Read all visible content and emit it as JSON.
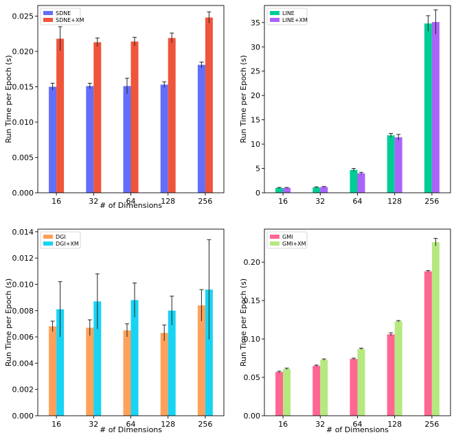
{
  "chart_data": [
    {
      "type": "bar",
      "xlabel": "# of Dimensions",
      "ylabel": "Run Time per Epoch (s)",
      "categories": [
        "16",
        "32",
        "64",
        "128",
        "256"
      ],
      "ylim": [
        0,
        0.0265
      ],
      "yticks": [
        "0.000",
        "0.005",
        "0.010",
        "0.015",
        "0.020",
        "0.025"
      ],
      "ytick_values": [
        0,
        0.005,
        0.01,
        0.015,
        0.02,
        0.025
      ],
      "legend_position": "top-left",
      "series": [
        {
          "name": "SDNE",
          "color": "#636efa",
          "values": [
            0.015,
            0.0151,
            0.0151,
            0.0153,
            0.0181
          ],
          "errors": [
            0.0005,
            0.0004,
            0.0011,
            0.0004,
            0.0004
          ]
        },
        {
          "name": "SDNE+XM",
          "color": "#ef553b",
          "values": [
            0.0218,
            0.0213,
            0.0214,
            0.0219,
            0.0248
          ],
          "errors": [
            0.0017,
            0.0006,
            0.0006,
            0.0007,
            0.0008
          ]
        }
      ]
    },
    {
      "type": "bar",
      "xlabel": "",
      "ylabel": "Run Time per Epoch (s)",
      "categories": [
        "16",
        "32",
        "64",
        "128",
        "256"
      ],
      "ylim": [
        0,
        38.5
      ],
      "yticks": [
        "0",
        "5",
        "10",
        "15",
        "20",
        "25",
        "30",
        "35"
      ],
      "ytick_values": [
        0,
        5,
        10,
        15,
        20,
        25,
        30,
        35
      ],
      "legend_position": "top-left",
      "series": [
        {
          "name": "LINE",
          "color": "#00cc96",
          "values": [
            1.0,
            1.1,
            4.7,
            11.8,
            34.8
          ],
          "errors": [
            0.1,
            0.1,
            0.3,
            0.4,
            1.6
          ]
        },
        {
          "name": "LINE+XM",
          "color": "#ab63fa",
          "values": [
            1.0,
            1.2,
            4.0,
            11.4,
            35.1
          ],
          "errors": [
            0.1,
            0.1,
            0.2,
            0.6,
            2.5
          ]
        }
      ]
    },
    {
      "type": "bar",
      "xlabel": "# of Dimensions",
      "ylabel": "Run Time per Epoch (s)",
      "categories": [
        "16",
        "32",
        "64",
        "128",
        "256"
      ],
      "ylim": [
        0,
        0.0142
      ],
      "yticks": [
        "0.000",
        "0.002",
        "0.004",
        "0.006",
        "0.008",
        "0.010",
        "0.012",
        "0.014"
      ],
      "ytick_values": [
        0,
        0.002,
        0.004,
        0.006,
        0.008,
        0.01,
        0.012,
        0.014
      ],
      "legend_position": "top-left",
      "series": [
        {
          "name": "DGI",
          "color": "#ffa15a",
          "values": [
            0.0068,
            0.0067,
            0.0065,
            0.0063,
            0.0084
          ],
          "errors": [
            0.0004,
            0.0006,
            0.0005,
            0.0006,
            0.0012
          ]
        },
        {
          "name": "DGI+XM",
          "color": "#19d3f3",
          "values": [
            0.0081,
            0.0087,
            0.0088,
            0.008,
            0.0096
          ],
          "errors": [
            0.0021,
            0.0021,
            0.0013,
            0.0011,
            0.0038
          ]
        }
      ]
    },
    {
      "type": "bar",
      "xlabel": "# of Dimensions",
      "ylabel": "Run Time per Epoch (s)",
      "categories": [
        "16",
        "32",
        "64",
        "128",
        "256"
      ],
      "ylim": [
        0,
        0.243
      ],
      "yticks": [
        "0.00",
        "0.05",
        "0.10",
        "0.15",
        "0.20"
      ],
      "ytick_values": [
        0,
        0.05,
        0.1,
        0.15,
        0.2
      ],
      "legend_position": "top-left",
      "series": [
        {
          "name": "GMI",
          "color": "#ff6692",
          "values": [
            0.057,
            0.065,
            0.074,
            0.106,
            0.188
          ],
          "errors": [
            0.001,
            0.001,
            0.001,
            0.002,
            0.001
          ]
        },
        {
          "name": "GMI+XM",
          "color": "#b6e880",
          "values": [
            0.061,
            0.073,
            0.087,
            0.123,
            0.226
          ],
          "errors": [
            0.001,
            0.001,
            0.001,
            0.001,
            0.005
          ]
        }
      ]
    }
  ]
}
